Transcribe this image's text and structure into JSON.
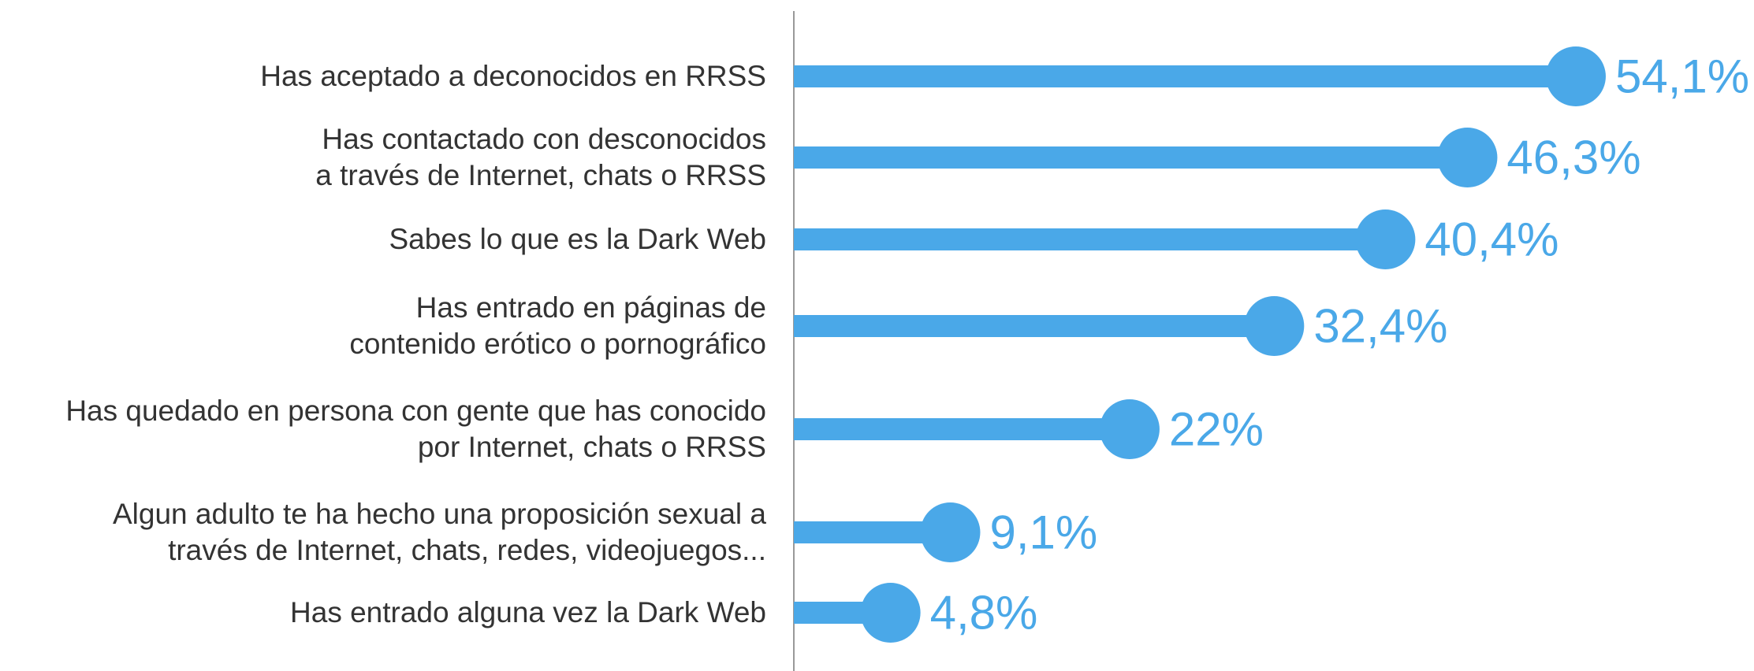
{
  "chart_data": {
    "type": "lollipop",
    "orientation": "horizontal",
    "categories": [
      "Has aceptado a deconocidos en RRSS",
      "Has contactado con desconocidos\na través de Internet, chats o RRSS",
      "Sabes lo que es la Dark Web",
      "Has entrado en páginas de\ncontenido erótico o pornográfico",
      "Has quedado en persona con gente que has conocido\npor Internet, chats o RRSS",
      "Algun adulto te ha hecho una proposición sexual a\ntravés de Internet, chats, redes, videojuegos...",
      "Has entrado alguna vez la Dark Web"
    ],
    "values": [
      54.1,
      46.3,
      40.4,
      32.4,
      22,
      9.1,
      4.8
    ],
    "value_labels": [
      "54,1%",
      "46,3%",
      "40,4%",
      "32,4%",
      "22%",
      "9,1%",
      "4,8%"
    ],
    "color": "#4aa8e8",
    "xlim": [
      0,
      60
    ]
  }
}
